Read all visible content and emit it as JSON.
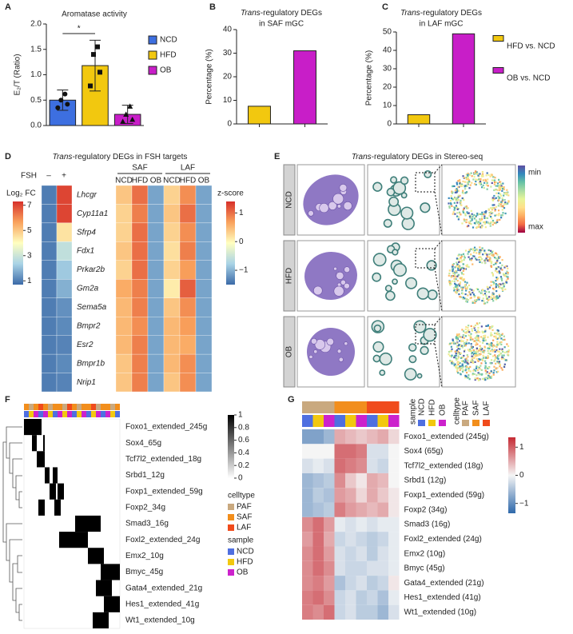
{
  "panel_labels": [
    "A",
    "B",
    "C",
    "D",
    "E",
    "F",
    "G"
  ],
  "chart_data": [
    {
      "type": "bar",
      "title": "Aromatase activity",
      "y_label": "E₂/T (Ratio)",
      "categories": [
        "NCD",
        "HFD",
        "OB"
      ],
      "values": [
        0.5,
        1.18,
        0.22
      ],
      "errors": [
        0.2,
        0.5,
        0.18
      ],
      "colors": [
        "#3d6fe0",
        "#f2c80f",
        "#c81ec8"
      ],
      "points": [
        [
          0.35,
          0.42,
          0.5,
          0.62
        ],
        [
          0.78,
          1.05,
          1.4,
          1.55
        ],
        [
          0.08,
          0.12,
          0.22,
          0.38
        ]
      ],
      "ylim": [
        0,
        2
      ],
      "yticks": [
        {
          "value": 0,
          "label": "0.0"
        },
        0.5,
        {
          "value": 1,
          "label": "1.0"
        },
        1.5,
        {
          "value": 2,
          "label": "2.0"
        }
      ],
      "annotation": "*"
    },
    {
      "type": "bar",
      "title": [
        {
          "text": "Trans",
          "italic": true
        },
        {
          "text": "-regulatory DEGs",
          "italic": false
        }
      ],
      "title_line2": "in SAF mGC",
      "y_label": "Percentage (%)",
      "categories": [
        null,
        null
      ],
      "values": [
        7.5,
        31
      ],
      "colors": [
        "#f2c80f",
        "#c81ec8"
      ],
      "ylim": [
        0,
        40
      ],
      "yticks": [
        0,
        10,
        20,
        30,
        40
      ]
    },
    {
      "type": "bar",
      "title": [
        {
          "text": "Trans",
          "italic": true
        },
        {
          "text": "-regulatory DEGs",
          "italic": false
        }
      ],
      "title_line2": "in LAF mGC",
      "y_label": "Percentage (%)",
      "categories": [
        null,
        null
      ],
      "values": [
        5,
        49
      ],
      "colors": [
        "#f2c80f",
        "#c81ec8"
      ],
      "legend": [
        "HFD vs. NCD",
        "OB vs. NCD"
      ],
      "ylim": [
        0,
        50
      ],
      "yticks": [
        0,
        10,
        20,
        30,
        40,
        50
      ]
    },
    {
      "type": "heatmap",
      "title": [
        {
          "text": "Trans",
          "italic": true
        },
        {
          "text": "-regulatory DEGs in FSH targets",
          "italic": false
        }
      ],
      "rows": [
        "Lhcgr",
        "Cyp11a1",
        "Sfrp4",
        "Fdx1",
        "Prkar2b",
        "Gm2a",
        "Sema5a",
        "Bmpr2",
        "Esr2",
        "Bmpr1b",
        "Nrip1"
      ],
      "colormap": [
        "#3b6aa8",
        "#a9d3e6",
        "#ffffc0",
        "#f9a25c",
        "#d7302a"
      ],
      "left": {
        "label": "FSH",
        "columns": [
          "–",
          "+"
        ],
        "colorbar_label": "Log₂ FC",
        "clim": [
          0.7,
          7.3
        ],
        "cticks": [
          1,
          3,
          5,
          7
        ],
        "values": [
          [
            1,
            7
          ],
          [
            1,
            7
          ],
          [
            1,
            4.5
          ],
          [
            1,
            2.8
          ],
          [
            1,
            2.2
          ],
          [
            1,
            1.8
          ],
          [
            1,
            1.3
          ],
          [
            1,
            1.2
          ],
          [
            1,
            1.1
          ],
          [
            1,
            1.2
          ],
          [
            1,
            1.1
          ]
        ]
      },
      "right": {
        "groups": [
          {
            "name": "SAF",
            "columns": [
              "NCD",
              "HFD",
              "OB"
            ]
          },
          {
            "name": "LAF",
            "columns": [
              "NCD",
              "HFD",
              "OB"
            ]
          }
        ],
        "colorbar_label": "z-score",
        "clim": [
          -1.5,
          1.4
        ],
        "cticks": [
          1,
          0,
          {
            "value": -1,
            "label": "−1"
          }
        ],
        "values": [
          [
            0.4,
            1,
            -1.1,
            0.3,
            0.8,
            -1.1
          ],
          [
            0.3,
            0.9,
            -1.1,
            0.4,
            1,
            -1.1
          ],
          [
            0.3,
            1,
            -1.1,
            0.3,
            0.8,
            -1.1
          ],
          [
            0.4,
            1,
            -1.1,
            0.2,
            0.9,
            -1.1
          ],
          [
            0.3,
            1,
            -1.1,
            0.3,
            0.7,
            -1.1
          ],
          [
            0.6,
            0.9,
            -1.1,
            0.1,
            1.1,
            -1.1
          ],
          [
            0.5,
            0.9,
            -1.1,
            0.4,
            0.8,
            -1.1
          ],
          [
            0.5,
            0.8,
            -1.1,
            0.5,
            0.7,
            -1.1
          ],
          [
            0.5,
            0.9,
            -1.1,
            0.5,
            0.6,
            -1.1
          ],
          [
            0.4,
            0.9,
            -1.1,
            0.5,
            0.8,
            -1.1
          ],
          [
            0.4,
            0.9,
            -1.1,
            0.4,
            0.8,
            -1.1
          ]
        ]
      }
    },
    {
      "type": "image_grid",
      "title": [
        {
          "text": "Trans",
          "italic": true
        },
        {
          "text": "-regulatory DEGs in Stereo-seq",
          "italic": false
        }
      ],
      "rows": [
        "NCD",
        "HFD",
        "OB"
      ],
      "colorbar_labels": [
        "min",
        "max"
      ],
      "colormap": [
        "#5e4fa2",
        "#3288bd",
        "#66c2a5",
        "#abdda4",
        "#e6f598",
        "#fee08b",
        "#fdae61",
        "#f46d43",
        "#9e0142"
      ]
    },
    {
      "type": "binary_heatmap",
      "xlim": [
        0,
        60
      ],
      "colormap": [
        "#ffffff",
        "#000000"
      ],
      "clim": [
        0,
        1
      ],
      "cticks": [
        1,
        0.8,
        0.6,
        0.4,
        0.2,
        0
      ],
      "rows": [
        {
          "label": "Foxo1_extended_245g",
          "on": [
            [
              0,
              11
            ]
          ]
        },
        {
          "label": "Sox4_65g",
          "on": [
            [
              5,
              8
            ],
            [
              12,
              13
            ]
          ]
        },
        {
          "label": "Tcf7l2_extended_18g",
          "on": [
            [
              8,
              13
            ]
          ]
        },
        {
          "label": "Srbd1_12g",
          "on": [
            [
              13,
              16
            ],
            [
              18,
              21
            ]
          ]
        },
        {
          "label": "Foxp1_extended_59g",
          "on": [
            [
              16,
              20
            ],
            [
              21,
              25
            ]
          ]
        },
        {
          "label": "Foxp2_34g",
          "on": [
            [
              9,
              13
            ],
            [
              19,
              23
            ]
          ]
        },
        {
          "label": "Smad3_16g",
          "on": [
            [
              32,
              48
            ]
          ]
        },
        {
          "label": "Foxl2_extended_24g",
          "on": [
            [
              22,
              40
            ]
          ]
        },
        {
          "label": "Emx2_10g",
          "on": [
            [
              40,
              50
            ]
          ]
        },
        {
          "label": "Bmyc_45g",
          "on": [
            [
              48,
              60
            ]
          ]
        },
        {
          "label": "Gata4_extended_21g",
          "on": [
            [
              45,
              55
            ]
          ]
        },
        {
          "label": "Hes1_extended_41g",
          "on": [
            [
              50,
              60
            ]
          ]
        },
        {
          "label": "Wt1_extended_10g",
          "on": [
            [
              43,
              53
            ]
          ]
        }
      ],
      "celltype_strip": [
        "SAF",
        "PAF",
        "SAF",
        "LAF",
        "SAF",
        "PAF",
        "SAF",
        "SAF",
        "PAF",
        "LAF",
        "SAF",
        "PAF",
        "SAF",
        "SAF",
        "LAF",
        "PAF",
        "SAF",
        "SAF",
        "PAF",
        "SAF"
      ],
      "sample_strip": [
        "NCD",
        "HFD",
        "OB",
        "NCD",
        "OB",
        "HFD",
        "NCD",
        "OB",
        "HFD",
        "OB",
        "NCD",
        "HFD",
        "OB",
        "NCD",
        "HFD",
        "OB",
        "NCD",
        "OB",
        "HFD",
        "NCD"
      ],
      "legend": [
        {
          "title": "celltype",
          "items": [
            {
              "name": "PAF",
              "color": "#c9a97f"
            },
            {
              "name": "SAF",
              "color": "#f28e1c"
            },
            {
              "name": "LAF",
              "color": "#f04b1c"
            }
          ]
        },
        {
          "title": "sample",
          "items": [
            {
              "name": "NCD",
              "color": "#4f6fe0"
            },
            {
              "name": "HFD",
              "color": "#f2c80f"
            },
            {
              "name": "OB",
              "color": "#cc22cc"
            }
          ]
        }
      ]
    },
    {
      "type": "heatmap",
      "colormap": [
        "#2f69ab",
        "#f5f5f5",
        "#c52a33"
      ],
      "clim": [
        -1.35,
        1.35
      ],
      "cticks": [
        1,
        0,
        {
          "value": -1,
          "label": "−1"
        }
      ],
      "rows": [
        "Foxo1_extended (245g)",
        "Sox4 (65g)",
        "Tcf7l2_extended (18g)",
        "Srbd1 (12g)",
        "Foxp1_extended (59g)",
        "Foxp2 (34g)",
        "Smad3 (16g)",
        "Foxl2_extended (24g)",
        "Emx2 (10g)",
        "Bmyc (45g)",
        "Gata4_extended (21g)",
        "Hes1_extended (41g)",
        "Wt1_extended (10g)"
      ],
      "col_celltype": [
        "PAF",
        "PAF",
        "PAF",
        "SAF",
        "SAF",
        "SAF",
        "LAF",
        "LAF",
        "LAF"
      ],
      "col_sample": [
        "NCD",
        "HFD",
        "OB",
        "NCD",
        "HFD",
        "OB",
        "NCD",
        "HFD",
        "OB"
      ],
      "values": [
        [
          -0.8,
          -0.8,
          -0.6,
          0.5,
          0.4,
          0.3,
          0.4,
          0.5,
          0.2
        ],
        [
          0,
          0,
          0,
          0.9,
          0.9,
          0.8,
          -0.2,
          -0.2,
          0
        ],
        [
          -0.2,
          -0.1,
          -0.2,
          0.9,
          0.8,
          0.7,
          -0.2,
          -0.3,
          0
        ],
        [
          -0.6,
          -0.5,
          -0.4,
          0.7,
          0.3,
          0.1,
          0.5,
          0.4,
          0
        ],
        [
          -0.6,
          -0.4,
          -0.5,
          0.6,
          0.5,
          0.2,
          0.5,
          0.3,
          0.1
        ],
        [
          -0.6,
          -0.5,
          -0.4,
          0.8,
          0.6,
          0.5,
          0.4,
          0.5,
          0.1
        ],
        [
          0.7,
          0.9,
          0.6,
          -0.1,
          -0.2,
          -0.1,
          -0.2,
          -0.1,
          -0.1
        ],
        [
          0.6,
          0.9,
          0.5,
          -0.3,
          -0.2,
          -0.3,
          -0.4,
          -0.3,
          -0.1
        ],
        [
          0.7,
          0.9,
          0.6,
          -0.2,
          -0.3,
          -0.2,
          -0.4,
          -0.2,
          -0.1
        ],
        [
          0.7,
          0.9,
          0.7,
          -0.2,
          -0.3,
          -0.3,
          -0.2,
          -0.2,
          -0.1
        ],
        [
          0.7,
          0.8,
          0.6,
          -0.5,
          -0.3,
          -0.2,
          -0.4,
          -0.3,
          0.1
        ],
        [
          0.8,
          0.9,
          0.7,
          -0.3,
          -0.2,
          -0.4,
          -0.3,
          -0.5,
          -0.1
        ],
        [
          0.8,
          0.7,
          0.9,
          -0.3,
          -0.2,
          -0.4,
          -0.4,
          -0.6,
          -0.2
        ]
      ],
      "legend": [
        {
          "title": "sample",
          "items": [
            {
              "name": "NCD",
              "color": "#4f6fe0"
            },
            {
              "name": "HFD",
              "color": "#f2c80f"
            },
            {
              "name": "OB",
              "color": "#cc22cc"
            }
          ]
        },
        {
          "title": "celltype",
          "items": [
            {
              "name": "PAF",
              "color": "#c9a97f"
            },
            {
              "name": "SAF",
              "color": "#f28e1c"
            },
            {
              "name": "LAF",
              "color": "#f04b1c"
            }
          ]
        }
      ]
    }
  ]
}
